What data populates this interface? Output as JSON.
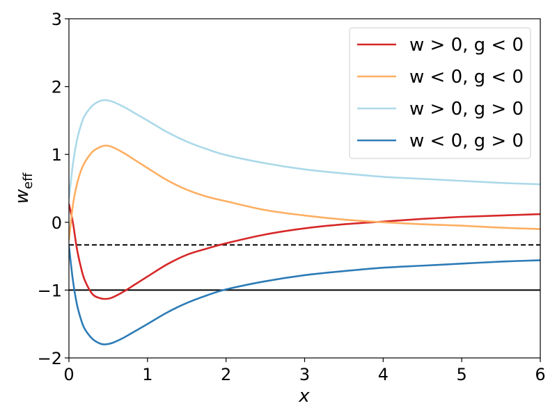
{
  "chart_data": {
    "type": "line",
    "xlabel": "x",
    "ylabel": {
      "main": "w",
      "sub": "eff"
    },
    "xlim": [
      0,
      6
    ],
    "ylim": [
      -2,
      3
    ],
    "xticks": [
      0,
      1,
      2,
      3,
      4,
      5,
      6
    ],
    "yticks": [
      -2,
      -1,
      0,
      1,
      2,
      3
    ],
    "xtick_labels": [
      "0",
      "1",
      "2",
      "3",
      "4",
      "5",
      "6"
    ],
    "ytick_labels": [
      "−2",
      "−1",
      "0",
      "1",
      "2",
      "3"
    ],
    "grid": false,
    "legend_position": "top-right",
    "reference_lines": [
      {
        "y": -0.3333,
        "style": "dashed",
        "color": "#000000"
      },
      {
        "y": -1,
        "style": "solid",
        "color": "#000000"
      }
    ],
    "series": [
      {
        "name": "w > 0, g < 0",
        "color": "#d62728",
        "x": [
          0,
          0.05,
          0.1,
          0.15,
          0.2,
          0.3,
          0.4,
          0.47,
          0.55,
          0.7,
          0.85,
          1.0,
          1.25,
          1.5,
          1.75,
          2.0,
          2.5,
          3.0,
          3.5,
          4.0,
          4.5,
          5.0,
          5.5,
          6.0
        ],
        "y": [
          0.27,
          0.0,
          -0.38,
          -0.65,
          -0.85,
          -1.06,
          -1.12,
          -1.13,
          -1.11,
          -1.02,
          -0.91,
          -0.8,
          -0.62,
          -0.48,
          -0.39,
          -0.31,
          -0.18,
          -0.09,
          -0.03,
          0.01,
          0.05,
          0.08,
          0.1,
          0.12
        ]
      },
      {
        "name": "w < 0, g < 0",
        "color": "#fdae61",
        "x": [
          0,
          0.05,
          0.1,
          0.15,
          0.2,
          0.3,
          0.4,
          0.47,
          0.55,
          0.7,
          0.85,
          1.0,
          1.25,
          1.5,
          1.75,
          2.0,
          2.5,
          3.0,
          3.5,
          4.0,
          4.5,
          5.0,
          5.5,
          6.0
        ],
        "y": [
          -0.27,
          0.25,
          0.55,
          0.75,
          0.88,
          1.04,
          1.11,
          1.13,
          1.11,
          1.02,
          0.91,
          0.8,
          0.62,
          0.48,
          0.38,
          0.31,
          0.18,
          0.1,
          0.04,
          0.0,
          -0.03,
          -0.05,
          -0.08,
          -0.1
        ]
      },
      {
        "name": "w > 0, g > 0",
        "color": "#abd9e9",
        "x": [
          0,
          0.05,
          0.1,
          0.15,
          0.2,
          0.3,
          0.4,
          0.47,
          0.55,
          0.7,
          0.85,
          1.0,
          1.25,
          1.5,
          1.75,
          2.0,
          2.5,
          3.0,
          3.5,
          4.0,
          4.5,
          5.0,
          5.5,
          6.0
        ],
        "y": [
          0.35,
          0.85,
          1.2,
          1.42,
          1.57,
          1.72,
          1.79,
          1.8,
          1.78,
          1.7,
          1.6,
          1.5,
          1.33,
          1.19,
          1.08,
          0.99,
          0.87,
          0.78,
          0.72,
          0.67,
          0.64,
          0.61,
          0.58,
          0.56
        ]
      },
      {
        "name": "w < 0, g > 0",
        "color": "#2c7bb6",
        "x": [
          0,
          0.05,
          0.1,
          0.15,
          0.2,
          0.3,
          0.4,
          0.47,
          0.55,
          0.7,
          0.85,
          1.0,
          1.25,
          1.5,
          1.75,
          2.0,
          2.5,
          3.0,
          3.5,
          4.0,
          4.5,
          5.0,
          5.5,
          6.0
        ],
        "y": [
          -0.35,
          -0.85,
          -1.2,
          -1.42,
          -1.57,
          -1.72,
          -1.79,
          -1.8,
          -1.78,
          -1.7,
          -1.6,
          -1.5,
          -1.33,
          -1.19,
          -1.08,
          -0.99,
          -0.87,
          -0.78,
          -0.72,
          -0.67,
          -0.64,
          -0.61,
          -0.58,
          -0.56
        ]
      }
    ]
  }
}
